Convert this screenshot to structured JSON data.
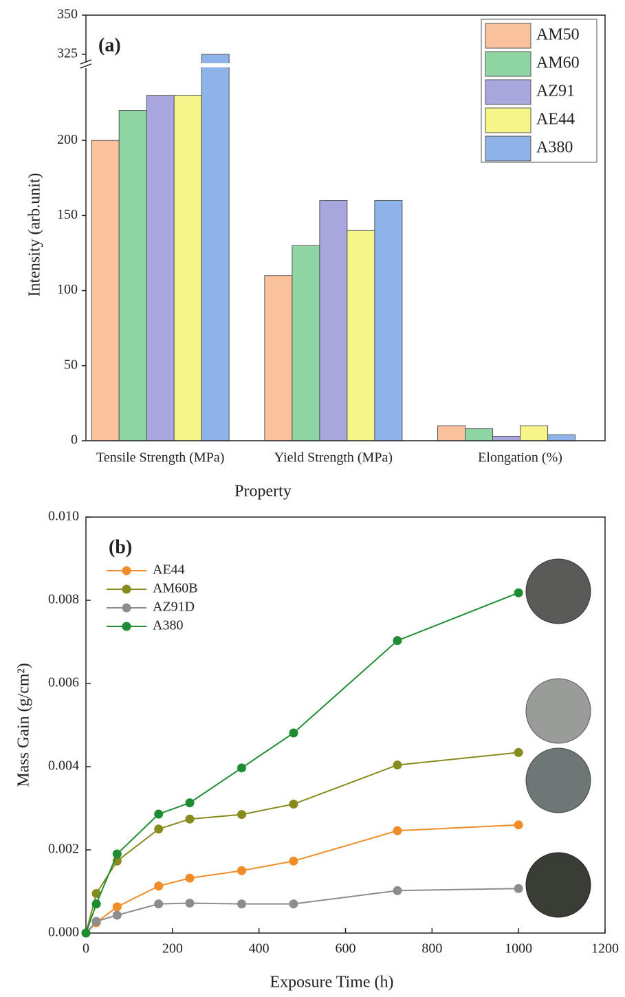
{
  "chart_data": [
    {
      "type": "bar",
      "annotation": "(a)",
      "x_label": "Property",
      "y_label": "Intensity (arb.unit)",
      "categories": [
        "Tensile Strength (MPa)",
        "Yield Strength (MPa)",
        "Elongation (%)"
      ],
      "series": [
        {
          "name": "AM50",
          "color": "#f9c29c",
          "values": [
            200,
            110,
            10
          ]
        },
        {
          "name": "AM60",
          "color": "#8fd4a3",
          "values": [
            220,
            130,
            8
          ]
        },
        {
          "name": "AZ91",
          "color": "#a9a5dd",
          "values": [
            230,
            160,
            3
          ]
        },
        {
          "name": "AE44",
          "color": "#f6f58a",
          "values": [
            230,
            140,
            10
          ]
        },
        {
          "name": "A380",
          "color": "#8eb3e8",
          "values": [
            325,
            160,
            4
          ]
        }
      ],
      "ylim": [
        0,
        350
      ],
      "axis_break": [
        250,
        318
      ],
      "yticks": [
        0,
        50,
        100,
        150,
        200,
        325,
        350
      ],
      "legend": "upper right"
    },
    {
      "type": "line",
      "annotation": "(b)",
      "x_label": "Exposure Time (h)",
      "y_label": "Mass Gain (g/cm²)",
      "x": [
        0,
        24,
        72,
        168,
        240,
        360,
        480,
        720,
        1000
      ],
      "series": [
        {
          "name": "AE44",
          "color": "#f08c28",
          "values": [
            0,
            0.00025,
            0.00063,
            0.00113,
            0.00132,
            0.0015,
            0.00173,
            0.00246,
            0.0026
          ]
        },
        {
          "name": "AM60B",
          "color": "#878a1c",
          "values": [
            0,
            0.00095,
            0.00173,
            0.0025,
            0.00274,
            0.00285,
            0.0031,
            0.00404,
            0.00434
          ]
        },
        {
          "name": "AZ91D",
          "color": "#8c8c8c",
          "values": [
            0,
            0.00028,
            0.00043,
            0.0007,
            0.00072,
            0.0007,
            0.0007,
            0.00102,
            0.00107
          ]
        },
        {
          "name": "A380",
          "color": "#1e8c32",
          "values": [
            0,
            0.0007,
            0.0019,
            0.00286,
            0.00313,
            0.00397,
            0.00481,
            0.00703,
            0.00818
          ]
        }
      ],
      "xlim": [
        0,
        1200
      ],
      "xticks": [
        0,
        200,
        400,
        600,
        800,
        1000,
        1200
      ],
      "ylim": [
        0,
        0.01
      ],
      "yticks": [
        {
          "value": 0,
          "label": "0.000"
        },
        {
          "value": 0.002,
          "label": "0.002"
        },
        {
          "value": 0.004,
          "label": "0.004"
        },
        {
          "value": 0.006,
          "label": "0.006"
        },
        {
          "value": 0.008,
          "label": "0.008"
        },
        {
          "value": 0.01,
          "label": "0.010"
        }
      ],
      "legend": "upper left"
    }
  ]
}
